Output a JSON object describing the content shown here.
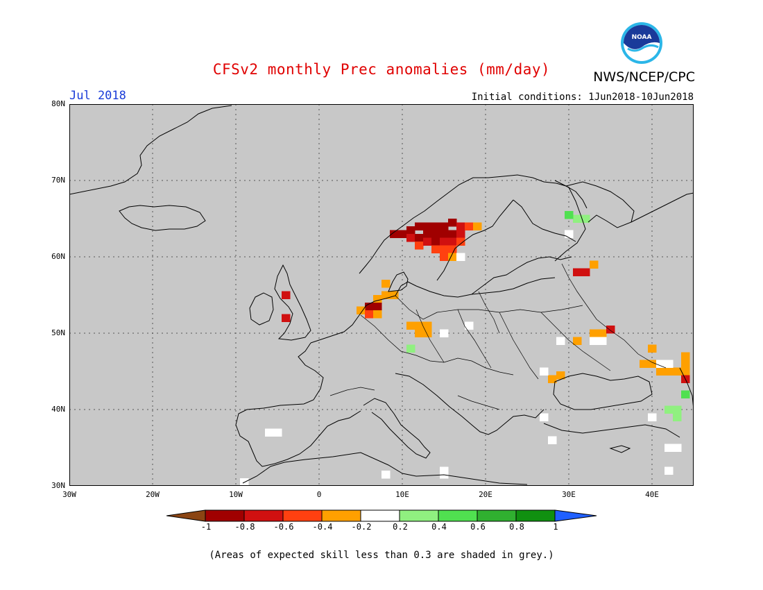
{
  "header": {
    "title": "CFSv2 monthly Prec anomalies (mm/day)",
    "agency": "NWS/NCEP/CPC",
    "month": "Jul 2018",
    "initial_conditions": "Initial conditions: 1Jun2018-10Jun2018"
  },
  "logo": {
    "text": "NOAA"
  },
  "map": {
    "lat_labels": [
      "80N",
      "70N",
      "60N",
      "50N",
      "40N",
      "30N"
    ],
    "lon_labels": [
      "30W",
      "20W",
      "10W",
      "0",
      "10E",
      "20E",
      "30E",
      "40E"
    ],
    "extent": {
      "lon_min": -30,
      "lon_max": 45,
      "lat_min": 30,
      "lat_max": 80
    },
    "background_color": "#c8c8c8"
  },
  "colorbar": {
    "labels": [
      "-1",
      "-0.8",
      "-0.6",
      "-0.4",
      "-0.2",
      "0.2",
      "0.4",
      "0.6",
      "0.8",
      "1"
    ],
    "colors": [
      "#8b4513",
      "#a00000",
      "#d01010",
      "#ff4010",
      "#ffa000",
      "#ffffff",
      "#90f080",
      "#50e050",
      "#30b030",
      "#109010",
      "#2060ff"
    ]
  },
  "anomalies": [
    {
      "lon": 9,
      "lat": 63,
      "color": "#a00000"
    },
    {
      "lon": 10,
      "lat": 63,
      "color": "#a00000"
    },
    {
      "lon": 11,
      "lat": 63.5,
      "color": "#a00000"
    },
    {
      "lon": 12,
      "lat": 64,
      "color": "#a00000"
    },
    {
      "lon": 13,
      "lat": 64,
      "color": "#a00000"
    },
    {
      "lon": 14,
      "lat": 64,
      "color": "#a00000"
    },
    {
      "lon": 15,
      "lat": 64,
      "color": "#a00000"
    },
    {
      "lon": 16,
      "lat": 64.5,
      "color": "#a00000"
    },
    {
      "lon": 17,
      "lat": 64,
      "color": "#d01010"
    },
    {
      "lon": 18,
      "lat": 64,
      "color": "#ff4010"
    },
    {
      "lon": 19,
      "lat": 64,
      "color": "#ffa000"
    },
    {
      "lon": 11,
      "lat": 62.5,
      "color": "#d01010"
    },
    {
      "lon": 12,
      "lat": 62.5,
      "color": "#a00000"
    },
    {
      "lon": 13,
      "lat": 63,
      "color": "#a00000"
    },
    {
      "lon": 14,
      "lat": 63,
      "color": "#a00000"
    },
    {
      "lon": 15,
      "lat": 63,
      "color": "#a00000"
    },
    {
      "lon": 16,
      "lat": 63,
      "color": "#a00000"
    },
    {
      "lon": 17,
      "lat": 63,
      "color": "#d01010"
    },
    {
      "lon": 12,
      "lat": 61.5,
      "color": "#ff4010"
    },
    {
      "lon": 13,
      "lat": 62,
      "color": "#d01010"
    },
    {
      "lon": 14,
      "lat": 62,
      "color": "#a00000"
    },
    {
      "lon": 15,
      "lat": 62,
      "color": "#d01010"
    },
    {
      "lon": 16,
      "lat": 62,
      "color": "#d01010"
    },
    {
      "lon": 17,
      "lat": 62,
      "color": "#ff4010"
    },
    {
      "lon": 14,
      "lat": 61,
      "color": "#ff4010"
    },
    {
      "lon": 15,
      "lat": 61,
      "color": "#ff4010"
    },
    {
      "lon": 16,
      "lat": 61,
      "color": "#ff4010"
    },
    {
      "lon": 15,
      "lat": 60,
      "color": "#ff4010"
    },
    {
      "lon": 16,
      "lat": 60,
      "color": "#ffa000"
    },
    {
      "lon": 17,
      "lat": 60,
      "color": "#ffffff"
    },
    {
      "lon": 7,
      "lat": 54.5,
      "color": "#ffa000"
    },
    {
      "lon": 8,
      "lat": 55,
      "color": "#ffa000"
    },
    {
      "lon": 9,
      "lat": 55,
      "color": "#ffa000"
    },
    {
      "lon": 6,
      "lat": 53.5,
      "color": "#a00000"
    },
    {
      "lon": 7,
      "lat": 53.5,
      "color": "#a00000"
    },
    {
      "lon": 5,
      "lat": 53,
      "color": "#ffa000"
    },
    {
      "lon": 6,
      "lat": 52.5,
      "color": "#ff4010"
    },
    {
      "lon": 7,
      "lat": 52.5,
      "color": "#ffa000"
    },
    {
      "lon": 8,
      "lat": 56.5,
      "color": "#ffa000"
    },
    {
      "lon": 11,
      "lat": 51,
      "color": "#ffa000"
    },
    {
      "lon": 12,
      "lat": 51,
      "color": "#ffa000"
    },
    {
      "lon": 13,
      "lat": 51,
      "color": "#ffa000"
    },
    {
      "lon": 12,
      "lat": 50,
      "color": "#ffa000"
    },
    {
      "lon": 13,
      "lat": 50,
      "color": "#ffa000"
    },
    {
      "lon": 11,
      "lat": 48,
      "color": "#90f080"
    },
    {
      "lon": 18,
      "lat": 51,
      "color": "#ffffff"
    },
    {
      "lon": 15,
      "lat": 50,
      "color": "#ffffff"
    },
    {
      "lon": -4,
      "lat": 55,
      "color": "#d01010"
    },
    {
      "lon": -4,
      "lat": 52,
      "color": "#d01010"
    },
    {
      "lon": 31,
      "lat": 58,
      "color": "#d01010"
    },
    {
      "lon": 32,
      "lat": 58,
      "color": "#d01010"
    },
    {
      "lon": 33,
      "lat": 59,
      "color": "#ffa000"
    },
    {
      "lon": 31,
      "lat": 65,
      "color": "#90f080"
    },
    {
      "lon": 32,
      "lat": 65,
      "color": "#90f080"
    },
    {
      "lon": 30,
      "lat": 65.5,
      "color": "#50e050"
    },
    {
      "lon": 30,
      "lat": 63,
      "color": "#ffffff"
    },
    {
      "lon": 33,
      "lat": 50,
      "color": "#ffa000"
    },
    {
      "lon": 34,
      "lat": 50,
      "color": "#ffa000"
    },
    {
      "lon": 35,
      "lat": 50.5,
      "color": "#d01010"
    },
    {
      "lon": 31,
      "lat": 49,
      "color": "#ffa000"
    },
    {
      "lon": 33,
      "lat": 49,
      "color": "#ffffff"
    },
    {
      "lon": 34,
      "lat": 49,
      "color": "#ffffff"
    },
    {
      "lon": 29,
      "lat": 49,
      "color": "#ffffff"
    },
    {
      "lon": 28,
      "lat": 44,
      "color": "#ffa000"
    },
    {
      "lon": 29,
      "lat": 44.5,
      "color": "#ffa000"
    },
    {
      "lon": 27,
      "lat": 45,
      "color": "#ffffff"
    },
    {
      "lon": 39,
      "lat": 46,
      "color": "#ffa000"
    },
    {
      "lon": 40,
      "lat": 46,
      "color": "#ffa000"
    },
    {
      "lon": 41,
      "lat": 45,
      "color": "#ffa000"
    },
    {
      "lon": 42,
      "lat": 45,
      "color": "#ffa000"
    },
    {
      "lon": 43,
      "lat": 45,
      "color": "#ffa000"
    },
    {
      "lon": 44,
      "lat": 46,
      "color": "#ffa000"
    },
    {
      "lon": 44,
      "lat": 47,
      "color": "#ffa000"
    },
    {
      "lon": 44,
      "lat": 45,
      "color": "#ffa000"
    },
    {
      "lon": 40,
      "lat": 48,
      "color": "#ffa000"
    },
    {
      "lon": 42,
      "lat": 46,
      "color": "#ffffff"
    },
    {
      "lon": 41,
      "lat": 46,
      "color": "#ffffff"
    },
    {
      "lon": 44,
      "lat": 44,
      "color": "#d01010"
    },
    {
      "lon": 44,
      "lat": 42,
      "color": "#50e050"
    },
    {
      "lon": 43,
      "lat": 40,
      "color": "#90f080"
    },
    {
      "lon": 42,
      "lat": 40,
      "color": "#90f080"
    },
    {
      "lon": 43,
      "lat": 39,
      "color": "#90f080"
    },
    {
      "lon": 40,
      "lat": 39,
      "color": "#ffffff"
    },
    {
      "lon": 43,
      "lat": 35,
      "color": "#ffffff"
    },
    {
      "lon": 42,
      "lat": 35,
      "color": "#ffffff"
    },
    {
      "lon": 42,
      "lat": 32,
      "color": "#ffffff"
    },
    {
      "lon": -5,
      "lat": 37,
      "color": "#ffffff"
    },
    {
      "lon": -6,
      "lat": 37,
      "color": "#ffffff"
    },
    {
      "lon": -9,
      "lat": 30.5,
      "color": "#ffffff"
    },
    {
      "lon": 8,
      "lat": 31.5,
      "color": "#ffffff"
    },
    {
      "lon": 15,
      "lat": 31.5,
      "color": "#ffffff"
    },
    {
      "lon": 15,
      "lat": 32,
      "color": "#ffffff"
    },
    {
      "lon": 28,
      "lat": 36,
      "color": "#ffffff"
    },
    {
      "lon": 27,
      "lat": 39,
      "color": "#ffffff"
    }
  ],
  "footnote": "(Areas of expected skill less than 0.3 are shaded in grey.)"
}
